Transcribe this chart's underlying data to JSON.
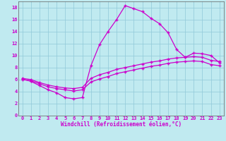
{
  "xlabel": "Windchill (Refroidissement éolien,°C)",
  "bg_color": "#c0eaf0",
  "line_color": "#cc00cc",
  "grid_color": "#90c8d8",
  "xlim": [
    -0.5,
    23.5
  ],
  "ylim": [
    0,
    19
  ],
  "xticks": [
    0,
    1,
    2,
    3,
    4,
    5,
    6,
    7,
    8,
    9,
    10,
    11,
    12,
    13,
    14,
    15,
    16,
    17,
    18,
    19,
    20,
    21,
    22,
    23
  ],
  "yticks": [
    0,
    2,
    4,
    6,
    8,
    10,
    12,
    14,
    16,
    18
  ],
  "series1_x": [
    0,
    1,
    2,
    3,
    4,
    5,
    6,
    7,
    8,
    9,
    10,
    11,
    12,
    13,
    14,
    15,
    16,
    17,
    18,
    19,
    20,
    21,
    22,
    23
  ],
  "series1_y": [
    6.1,
    5.7,
    5.0,
    4.3,
    3.8,
    3.0,
    2.8,
    3.0,
    8.3,
    11.8,
    14.0,
    16.0,
    18.3,
    17.8,
    17.3,
    16.2,
    15.3,
    13.8,
    11.0,
    9.7,
    10.4,
    10.3,
    10.0,
    8.8
  ],
  "series2_x": [
    0,
    1,
    2,
    3,
    4,
    5,
    6,
    7,
    8,
    9,
    10,
    11,
    12,
    13,
    14,
    15,
    16,
    17,
    18,
    19,
    20,
    21,
    22,
    23
  ],
  "series2_y": [
    6.0,
    5.8,
    5.3,
    4.8,
    4.5,
    4.3,
    4.1,
    4.3,
    5.6,
    6.1,
    6.5,
    7.0,
    7.3,
    7.6,
    7.9,
    8.2,
    8.4,
    8.7,
    8.9,
    9.0,
    9.1,
    9.0,
    8.5,
    8.3
  ],
  "series3_x": [
    0,
    1,
    2,
    3,
    4,
    5,
    6,
    7,
    8,
    9,
    10,
    11,
    12,
    13,
    14,
    15,
    16,
    17,
    18,
    19,
    20,
    21,
    22,
    23
  ],
  "series3_y": [
    6.2,
    6.0,
    5.5,
    5.1,
    4.8,
    4.6,
    4.5,
    4.7,
    6.2,
    6.8,
    7.2,
    7.7,
    8.0,
    8.3,
    8.6,
    8.9,
    9.1,
    9.4,
    9.6,
    9.7,
    9.8,
    9.7,
    9.2,
    9.0
  ]
}
